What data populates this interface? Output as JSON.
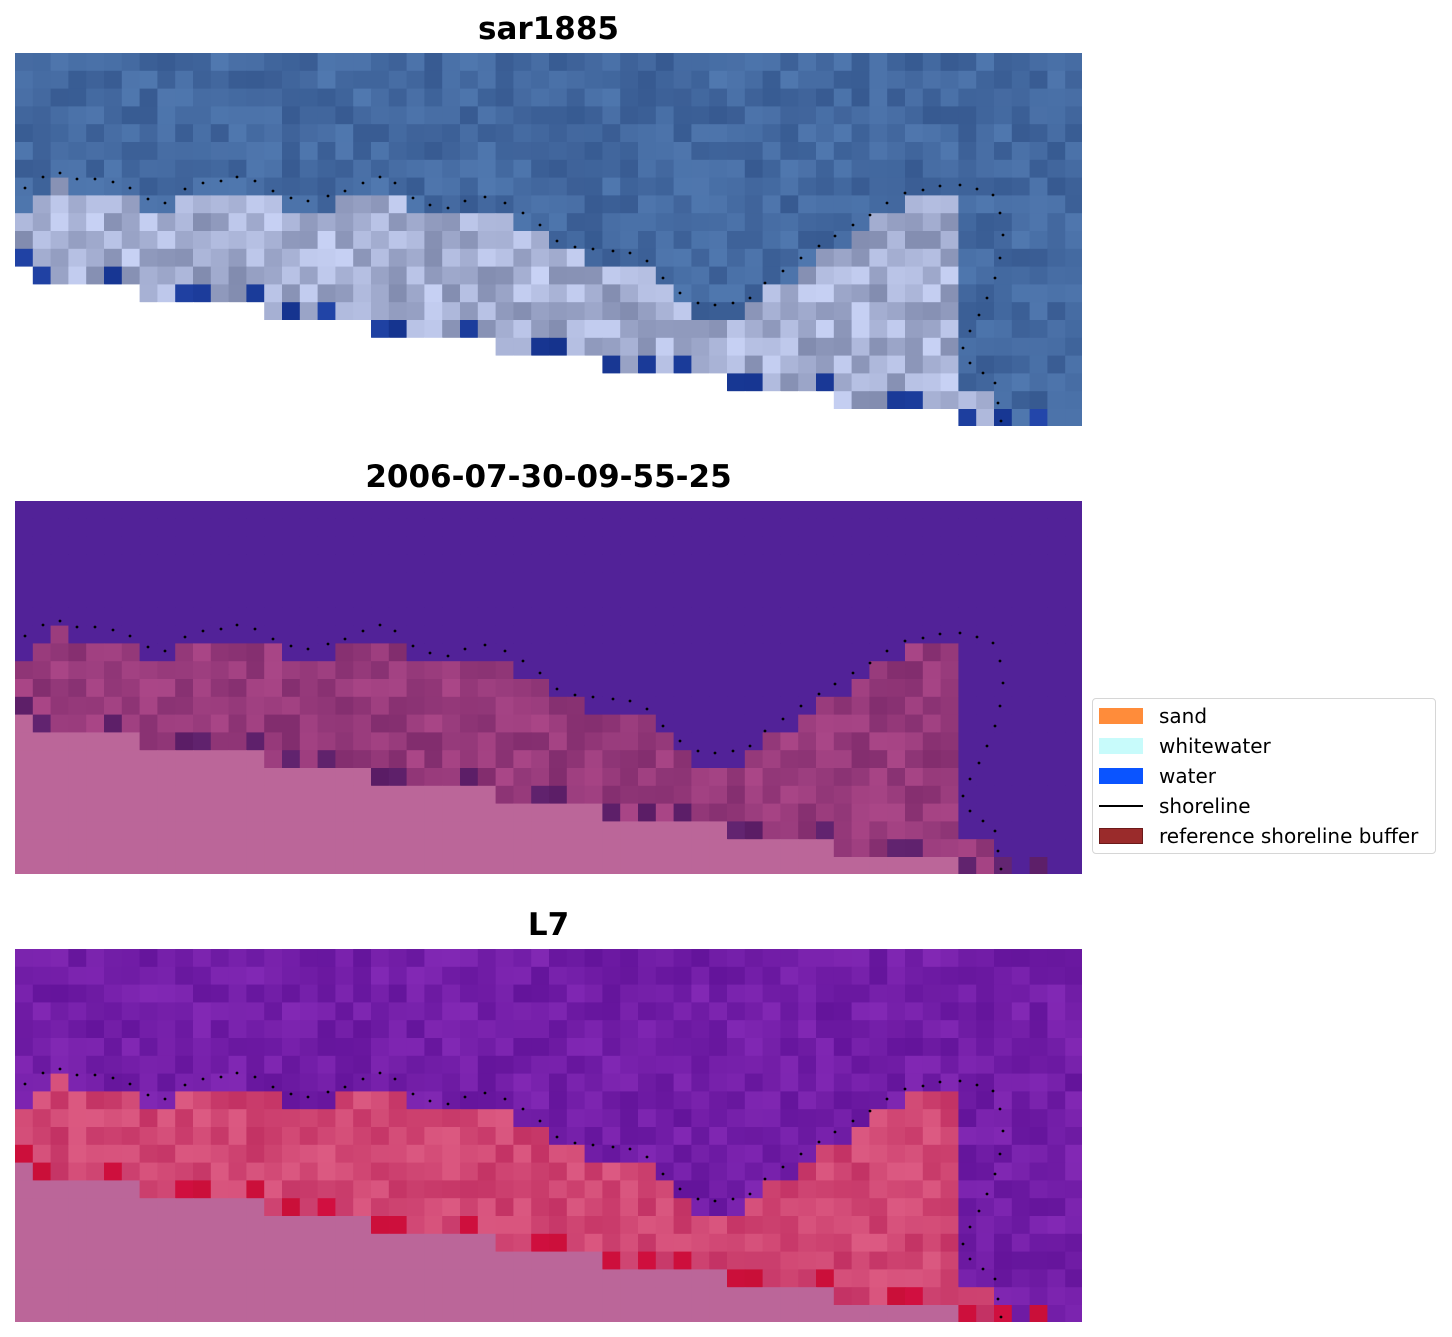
{
  "panels": [
    {
      "title": "sar1885",
      "style": "rgb"
    },
    {
      "title": "2006-07-30-09-55-25",
      "style": "class"
    },
    {
      "title": "L7",
      "style": "index"
    }
  ],
  "legend": {
    "items": [
      {
        "label": "sand",
        "color": "#ff8c3a",
        "kind": "patch"
      },
      {
        "label": "whitewater",
        "color": "#c8fbfb",
        "kind": "patch"
      },
      {
        "label": "water",
        "color": "#0a54ff",
        "kind": "patch"
      },
      {
        "label": "shoreline",
        "color": "#000000",
        "kind": "line"
      },
      {
        "label": "reference shoreline buffer",
        "color": "#9a2b2b",
        "kind": "patch"
      }
    ]
  }
}
